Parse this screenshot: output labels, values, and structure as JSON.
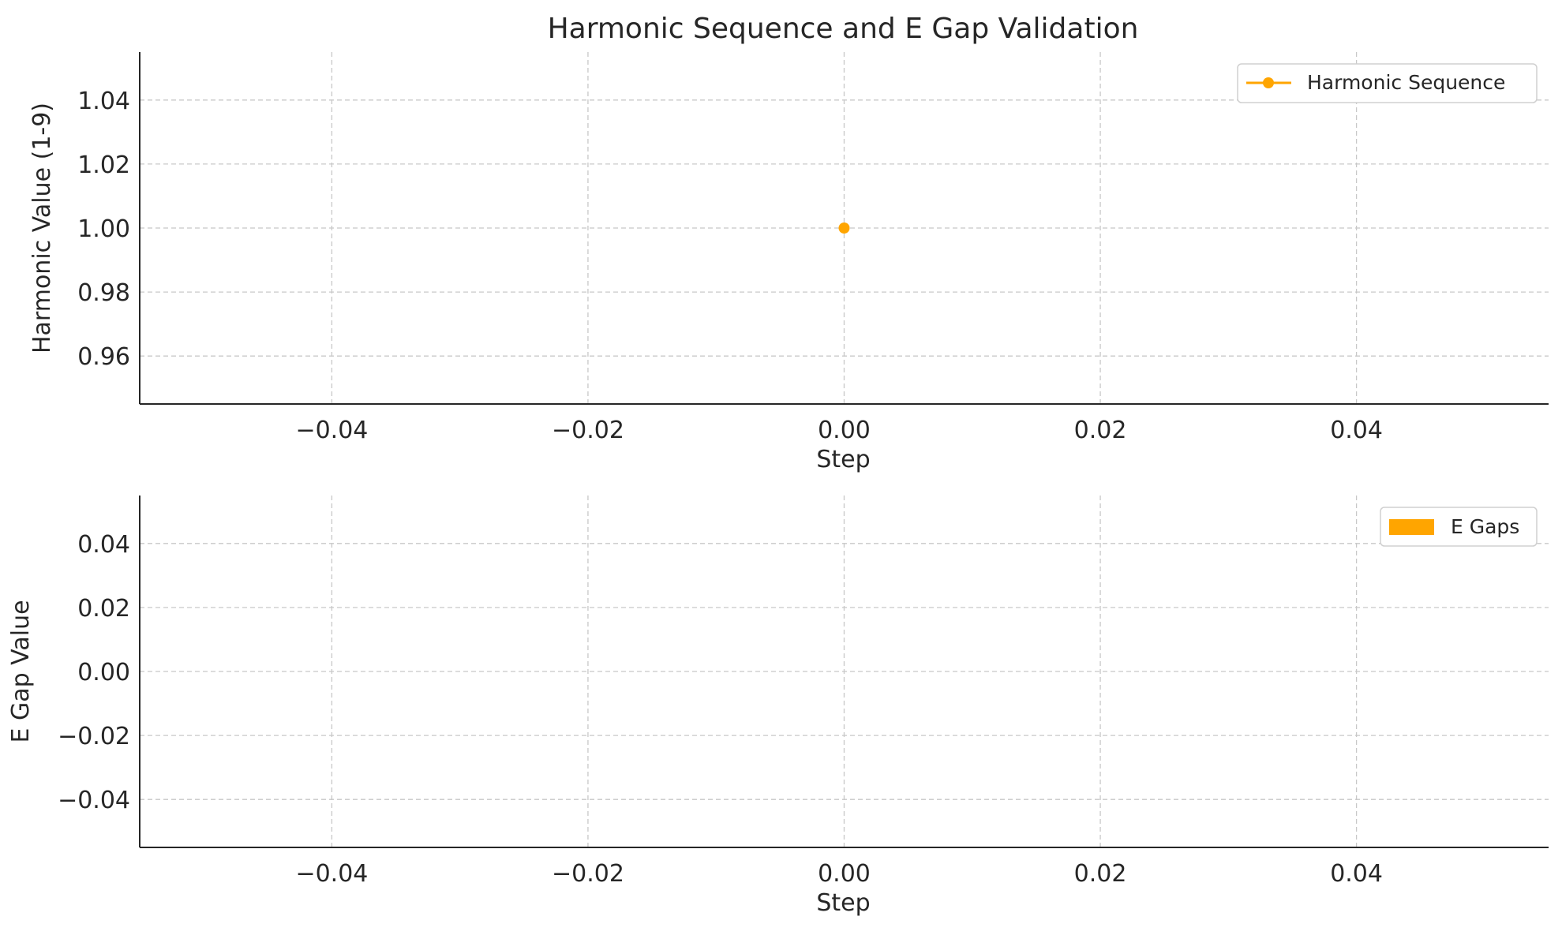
{
  "figure": {
    "title": "Harmonic Sequence and E Gap Validation"
  },
  "chart_data": [
    {
      "type": "line",
      "title": "Harmonic Sequence and E Gap Validation",
      "xlabel": "Step",
      "ylabel": "Harmonic Value (1-9)",
      "xlim": [
        -0.055,
        0.055
      ],
      "ylim": [
        0.945,
        1.055
      ],
      "x_ticks": [
        "−0.04",
        "−0.02",
        "0.00",
        "0.02",
        "0.04"
      ],
      "x_tick_values": [
        -0.04,
        -0.02,
        0.0,
        0.02,
        0.04
      ],
      "y_ticks": [
        "0.96",
        "0.98",
        "1.00",
        "1.02",
        "1.04"
      ],
      "y_tick_values": [
        0.96,
        0.98,
        1.0,
        1.02,
        1.04
      ],
      "grid": true,
      "legend_position": "top-right",
      "series": [
        {
          "name": "Harmonic Sequence",
          "color": "#FFA500",
          "marker": "circle",
          "x": [
            0
          ],
          "y": [
            1
          ]
        }
      ]
    },
    {
      "type": "bar",
      "xlabel": "Step",
      "ylabel": "E Gap Value",
      "xlim": [
        -0.055,
        0.055
      ],
      "ylim": [
        -0.055,
        0.055
      ],
      "x_ticks": [
        "−0.04",
        "−0.02",
        "0.00",
        "0.02",
        "0.04"
      ],
      "x_tick_values": [
        -0.04,
        -0.02,
        0.0,
        0.02,
        0.04
      ],
      "y_ticks": [
        "0.04",
        "0.02",
        "0.00",
        "−0.02",
        "−0.04"
      ],
      "y_tick_values": [
        0.04,
        0.02,
        0.0,
        -0.02,
        -0.04
      ],
      "grid": true,
      "legend_position": "top-right",
      "series": [
        {
          "name": "E Gaps",
          "color": "#FFA500",
          "values": []
        }
      ]
    }
  ]
}
